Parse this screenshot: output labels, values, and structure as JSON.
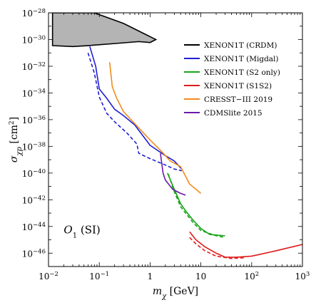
{
  "chart_data": {
    "type": "line",
    "title": "",
    "xlabel": {
      "symbol": "m",
      "subscript": "χ",
      "unit": " [GeV]"
    },
    "ylabel": {
      "symbol": "σ",
      "subscript": "χp",
      "unit_prefix": " [cm",
      "unit_sup": "2",
      "unit_suffix": "]"
    },
    "x_scale": "log",
    "y_scale": "log",
    "xlim": [
      0.01,
      1000
    ],
    "ylim": [
      1e-47,
      1e-28
    ],
    "x_ticks": [
      {
        "base": "10",
        "exp": "−2",
        "value": 0.01
      },
      {
        "base": "10",
        "exp": "−1",
        "value": 0.1
      },
      {
        "base": "1",
        "exp": "",
        "value": 1
      },
      {
        "base": "10",
        "exp": "",
        "value": 10
      },
      {
        "base": "10",
        "exp": "2",
        "value": 100
      },
      {
        "base": "10",
        "exp": "3",
        "value": 1000
      }
    ],
    "y_ticks": [
      {
        "base": "10",
        "exp": "−28",
        "value": 1e-28
      },
      {
        "base": "10",
        "exp": "−30",
        "value": 1e-30
      },
      {
        "base": "10",
        "exp": "−32",
        "value": 1e-32
      },
      {
        "base": "10",
        "exp": "−34",
        "value": 1e-34
      },
      {
        "base": "10",
        "exp": "−36",
        "value": 1e-36
      },
      {
        "base": "10",
        "exp": "−38",
        "value": 1e-38
      },
      {
        "base": "10",
        "exp": "−40",
        "value": 1e-40
      },
      {
        "base": "10",
        "exp": "−42",
        "value": 1e-42
      },
      {
        "base": "10",
        "exp": "−44",
        "value": 1e-44
      },
      {
        "base": "10",
        "exp": "−46",
        "value": 1e-46
      }
    ],
    "annotation": {
      "symbol": "O",
      "subscript": "1",
      "text": " (SI)",
      "x": 0.02,
      "y": 3e-45
    },
    "legend_position": "top-right",
    "legend": [
      {
        "label": "XENON1T (CRDM)",
        "color": "#000000"
      },
      {
        "label": "XENON1T (Migdal)",
        "color": "#1f1fd6"
      },
      {
        "label": "XENON1T (S2 only)",
        "color": "#17a317"
      },
      {
        "label": "XENON1T (S1S2)",
        "color": "#e01b1b"
      },
      {
        "label": "CRESST−III 2019",
        "color": "#f08c1e"
      },
      {
        "label": "CDMSlite 2015",
        "color": "#6a1aa8"
      }
    ],
    "series": [
      {
        "name": "XENON1T (CRDM)",
        "color": "#000000",
        "fill": "#b4b4b4",
        "style": "region",
        "points": [
          [
            0.012,
            1e-28
          ],
          [
            0.08,
            1e-28
          ],
          [
            0.3,
            1.6e-29
          ],
          [
            0.8,
            2.5e-30
          ],
          [
            1.3,
            1e-30
          ],
          [
            1.0,
            6e-31
          ],
          [
            0.6,
            7e-31
          ],
          [
            0.2,
            5e-31
          ],
          [
            0.06,
            3.5e-31
          ],
          [
            0.03,
            3e-31
          ],
          [
            0.012,
            3.5e-31
          ]
        ]
      },
      {
        "name": "XENON1T (Migdal)",
        "color": "#1f1fd6",
        "style": "solid",
        "points": [
          [
            0.065,
            3e-31
          ],
          [
            0.085,
            1e-32
          ],
          [
            0.1,
            2e-34
          ],
          [
            0.14,
            4e-35
          ],
          [
            0.2,
            6e-36
          ],
          [
            0.3,
            2e-36
          ],
          [
            0.5,
            4e-37
          ],
          [
            1,
            1.2e-38
          ],
          [
            2,
            2e-39
          ],
          [
            3,
            8e-40
          ],
          [
            4.2,
            2e-40
          ]
        ]
      },
      {
        "name": "XENON1T (Migdal)",
        "color": "#1f1fd6",
        "style": "dashed",
        "points": [
          [
            0.06,
            1e-31
          ],
          [
            0.08,
            3e-33
          ],
          [
            0.1,
            5e-35
          ],
          [
            0.14,
            3e-36
          ],
          [
            0.2,
            7e-37
          ],
          [
            0.35,
            1e-37
          ],
          [
            0.55,
            1.5e-38
          ],
          [
            0.6,
            3e-39
          ],
          [
            1,
            1.2e-39
          ],
          [
            2,
            4e-40
          ],
          [
            3,
            2e-40
          ],
          [
            4.2,
            1.5e-40
          ]
        ]
      },
      {
        "name": "XENON1T (S2 only)",
        "color": "#17a317",
        "style": "solid",
        "points": [
          [
            2.2,
            1e-40
          ],
          [
            3,
            6e-42
          ],
          [
            4,
            5e-43
          ],
          [
            5,
            1.5e-43
          ],
          [
            7,
            3e-44
          ],
          [
            10,
            7e-45
          ],
          [
            15,
            2.5e-45
          ],
          [
            30,
            2e-45
          ]
        ]
      },
      {
        "name": "XENON1T (S2 only)",
        "color": "#17a317",
        "style": "dashed",
        "points": [
          [
            2.3,
            8e-41
          ],
          [
            3,
            4e-42
          ],
          [
            4,
            3e-43
          ],
          [
            5,
            1e-43
          ],
          [
            7,
            2e-44
          ],
          [
            10,
            5e-45
          ],
          [
            20,
            2e-45
          ],
          [
            30,
            1.5e-45
          ]
        ]
      },
      {
        "name": "XENON1T (S1S2)",
        "color": "#e01b1b",
        "style": "solid",
        "points": [
          [
            6,
            4e-45
          ],
          [
            8,
            1e-45
          ],
          [
            12,
            3e-46
          ],
          [
            20,
            1e-46
          ],
          [
            30,
            5e-47
          ],
          [
            50,
            5e-47
          ],
          [
            100,
            6e-47
          ],
          [
            300,
            1.5e-46
          ],
          [
            1000,
            4.5e-46
          ]
        ]
      },
      {
        "name": "XENON1T (S1S2)",
        "color": "#e01b1b",
        "style": "dashed",
        "points": [
          [
            6,
            1.5e-45
          ],
          [
            8,
            5e-46
          ],
          [
            12,
            1.5e-46
          ],
          [
            20,
            6e-47
          ],
          [
            40,
            4e-47
          ],
          [
            70,
            4.5e-47
          ]
        ]
      },
      {
        "name": "CRESST−III 2019",
        "color": "#f08c1e",
        "style": "solid",
        "points": [
          [
            0.16,
            2e-32
          ],
          [
            0.18,
            3e-34
          ],
          [
            0.22,
            4e-35
          ],
          [
            0.3,
            4e-36
          ],
          [
            0.5,
            5e-37
          ],
          [
            1,
            3e-38
          ],
          [
            1.7,
            4e-39
          ],
          [
            2.5,
            8e-40
          ],
          [
            4,
            3e-40
          ],
          [
            6,
            1.5e-41
          ],
          [
            10,
            3e-42
          ]
        ]
      },
      {
        "name": "CDMSlite 2015",
        "color": "#6a1aa8",
        "style": "solid",
        "points": [
          [
            1.6,
            3e-39
          ],
          [
            1.8,
            1e-40
          ],
          [
            2,
            3e-41
          ],
          [
            2.8,
            6e-42
          ],
          [
            4,
            3e-42
          ],
          [
            5,
            2.2e-42
          ]
        ]
      }
    ]
  }
}
